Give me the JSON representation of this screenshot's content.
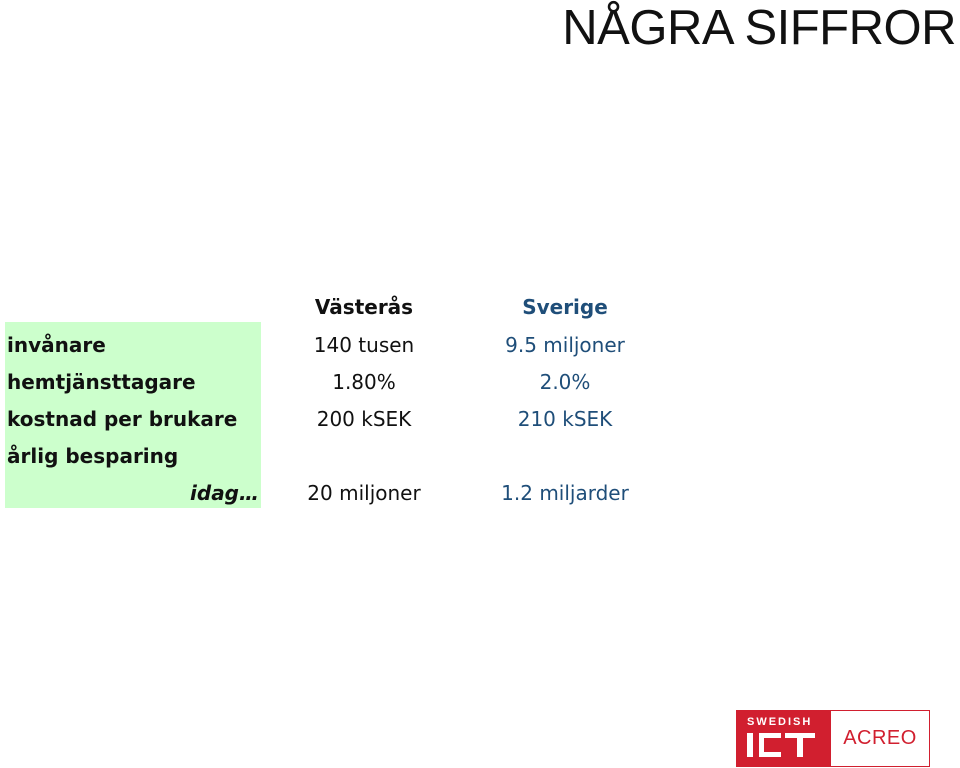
{
  "title": "NÅGRA SIFFROR",
  "table": {
    "headers": {
      "vasteras": "Västerås",
      "sverige": "Sverige"
    },
    "rows": [
      {
        "label": "invånare",
        "vasteras": "140 tusen",
        "sverige": "9.5 miljoner"
      },
      {
        "label": "hemtjänsttagare",
        "vasteras": "1.80%",
        "sverige": "2.0%"
      },
      {
        "label": "kostnad per brukare",
        "vasteras": "200 kSEK",
        "sverige": "210 kSEK"
      },
      {
        "label": "årlig besparing",
        "vasteras": "",
        "sverige": ""
      },
      {
        "label": "idag…",
        "vasteras": "20 miljoner",
        "sverige": "1.2 miljarder"
      }
    ]
  },
  "logo": {
    "top_text": "SWEDISH",
    "mark_text": "ICT",
    "right_text": "ACREO"
  },
  "colors": {
    "label_band": "#ccffcc",
    "sverige_text": "#1f4e79",
    "brand_red": "#d11f2f"
  }
}
